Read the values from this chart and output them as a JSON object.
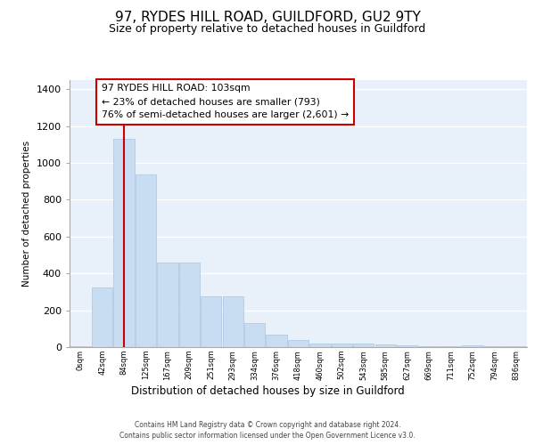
{
  "title": "97, RYDES HILL ROAD, GUILDFORD, GU2 9TY",
  "subtitle": "Size of property relative to detached houses in Guildford",
  "xlabel": "Distribution of detached houses by size in Guildford",
  "ylabel": "Number of detached properties",
  "bar_labels": [
    "0sqm",
    "42sqm",
    "84sqm",
    "125sqm",
    "167sqm",
    "209sqm",
    "251sqm",
    "293sqm",
    "334sqm",
    "376sqm",
    "418sqm",
    "460sqm",
    "502sqm",
    "543sqm",
    "585sqm",
    "627sqm",
    "669sqm",
    "711sqm",
    "752sqm",
    "794sqm",
    "836sqm"
  ],
  "bar_values": [
    5,
    325,
    1130,
    940,
    460,
    460,
    275,
    275,
    130,
    70,
    38,
    20,
    20,
    20,
    15,
    10,
    5,
    5,
    10,
    5,
    5
  ],
  "bar_color": "#c8ddf2",
  "bar_edgecolor": "#a8c4e0",
  "vline_x": 2,
  "vline_color": "#cc0000",
  "annotation_text": "97 RYDES HILL ROAD: 103sqm\n← 23% of detached houses are smaller (793)\n76% of semi-detached houses are larger (2,601) →",
  "ylim": [
    0,
    1450
  ],
  "yticks": [
    0,
    200,
    400,
    600,
    800,
    1000,
    1200,
    1400
  ],
  "footer_line1": "Contains HM Land Registry data © Crown copyright and database right 2024.",
  "footer_line2": "Contains public sector information licensed under the Open Government Licence v3.0.",
  "bg_color": "#e8f0fa"
}
